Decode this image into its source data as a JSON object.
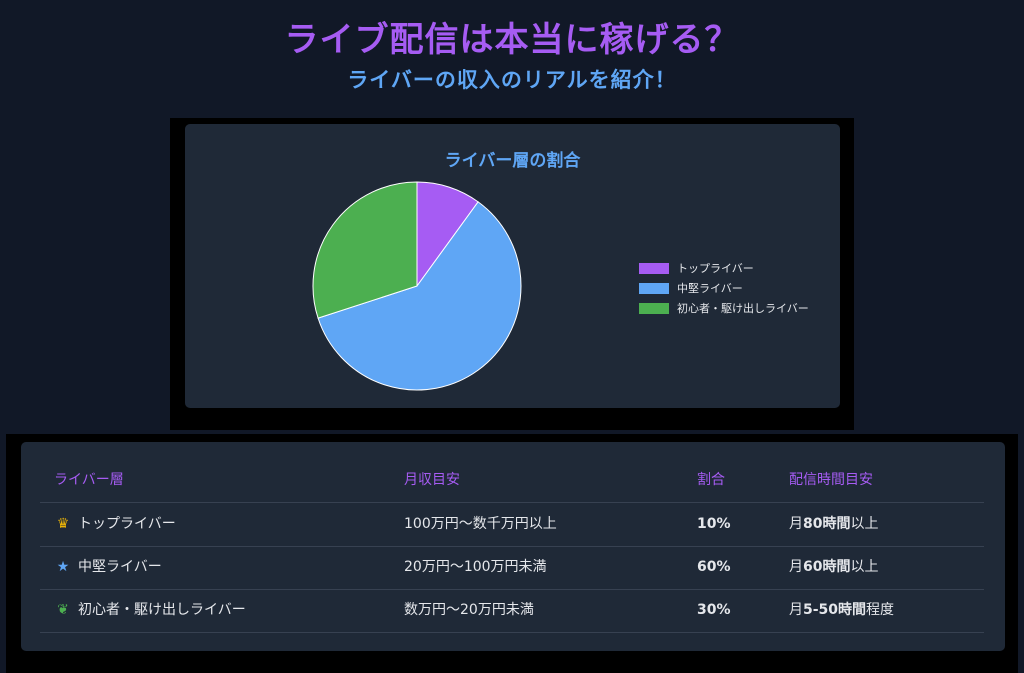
{
  "header": {
    "title": "ライブ配信は本当に稼げる？",
    "subtitle": "ライバーの収入のリアルを紹介！"
  },
  "colors": {
    "title": "#a65cf3",
    "subtitle": "#5fa6f5",
    "top": "#a65cf3",
    "mid": "#5fa6f5",
    "beginner": "#4caf50"
  },
  "chart_data": {
    "type": "pie",
    "title": "ライバー層の割合",
    "categories": [
      "トップライバー",
      "中堅ライバー",
      "初心者・駆け出しライバー"
    ],
    "values": [
      10,
      60,
      30
    ],
    "colors": [
      "#a65cf3",
      "#5fa6f5",
      "#4caf50"
    ],
    "legend_position": "right"
  },
  "table": {
    "headers": [
      "ライバー層",
      "月収目安",
      "割合",
      "配信時間目安"
    ],
    "rows": [
      {
        "icon": "crown-icon",
        "tier": "トップライバー",
        "income": "100万円〜数千万円以上",
        "share": "10%",
        "hours_pre": "月",
        "hours_num": "80時間",
        "hours_post": "以上"
      },
      {
        "icon": "star-icon",
        "tier": "中堅ライバー",
        "income": "20万円〜100万円未満",
        "share": "60%",
        "hours_pre": "月",
        "hours_num": "60時間",
        "hours_post": "以上"
      },
      {
        "icon": "sprout-icon",
        "tier": "初心者・駆け出しライバー",
        "income": "数万円〜20万円未満",
        "share": "30%",
        "hours_pre": "月",
        "hours_num": "5-50時間",
        "hours_post": "程度"
      }
    ]
  }
}
